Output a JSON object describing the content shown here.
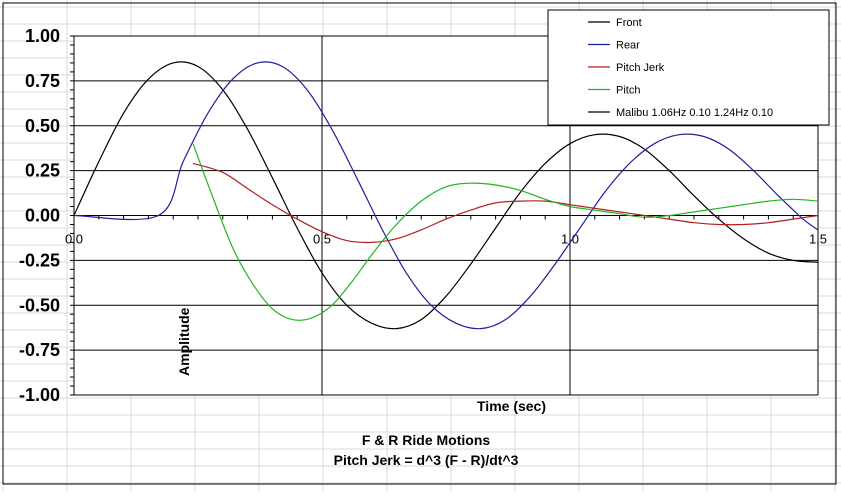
{
  "chart_data": {
    "type": "line",
    "title": "F & R Ride Motions",
    "subtitle": "Pitch Jerk = d^3 (F - R)/dt^3",
    "xlabel": "Time (sec)",
    "ylabel": "Amplitude",
    "xlim": [
      0,
      1.5
    ],
    "ylim": [
      -1.0,
      1.0
    ],
    "x_ticks": [
      {
        "value": 0.0,
        "label": "0.0"
      },
      {
        "value": 0.5,
        "label": "0.5"
      },
      {
        "value": 1.0,
        "label": "1.0"
      },
      {
        "value": 1.5,
        "label": "1.5"
      }
    ],
    "y_ticks": [
      {
        "value": 1.0,
        "label": "1.00"
      },
      {
        "value": 0.75,
        "label": "0.75"
      },
      {
        "value": 0.5,
        "label": "0.50"
      },
      {
        "value": 0.25,
        "label": "0.25"
      },
      {
        "value": 0.0,
        "label": "0.00"
      },
      {
        "value": -0.25,
        "label": "-0.25"
      },
      {
        "value": -0.5,
        "label": "-0.50"
      },
      {
        "value": -0.75,
        "label": "-0.75"
      },
      {
        "value": -1.0,
        "label": "-1.00"
      }
    ],
    "grid": "horizontal at y ticks, vertical at x ticks",
    "legend_position": "top-right",
    "series": [
      {
        "name": "Front",
        "color": "#000000",
        "x": [
          0.0,
          0.05,
          0.1,
          0.15,
          0.2,
          0.25,
          0.3,
          0.35,
          0.4,
          0.45,
          0.5,
          0.55,
          0.6,
          0.65,
          0.7,
          0.75,
          0.8,
          0.85,
          0.9,
          0.95,
          1.0,
          1.05,
          1.1,
          1.15,
          1.2,
          1.25,
          1.3,
          1.35,
          1.4,
          1.45,
          1.5
        ],
        "y": [
          0.0,
          0.3,
          0.57,
          0.76,
          0.85,
          0.83,
          0.7,
          0.48,
          0.21,
          -0.07,
          -0.32,
          -0.5,
          -0.6,
          -0.63,
          -0.58,
          -0.45,
          -0.27,
          -0.07,
          0.13,
          0.29,
          0.4,
          0.45,
          0.44,
          0.37,
          0.25,
          0.11,
          -0.02,
          -0.13,
          -0.21,
          -0.25,
          -0.26
        ]
      },
      {
        "name": "Rear",
        "color": "#1f1fa0",
        "x": [
          0.0,
          0.17,
          0.22,
          0.27,
          0.32,
          0.37,
          0.42,
          0.47,
          0.52,
          0.57,
          0.62,
          0.67,
          0.72,
          0.77,
          0.82,
          0.87,
          0.92,
          0.97,
          1.02,
          1.07,
          1.12,
          1.17,
          1.22,
          1.27,
          1.32,
          1.37,
          1.42,
          1.47,
          1.5
        ],
        "y": [
          0.0,
          0.0,
          0.3,
          0.57,
          0.76,
          0.85,
          0.83,
          0.7,
          0.48,
          0.21,
          -0.07,
          -0.32,
          -0.5,
          -0.6,
          -0.63,
          -0.58,
          -0.45,
          -0.27,
          -0.07,
          0.13,
          0.29,
          0.4,
          0.45,
          0.44,
          0.37,
          0.25,
          0.11,
          -0.02,
          -0.08
        ]
      },
      {
        "name": "Pitch Jerk",
        "color": "#b02020",
        "x": [
          0.24,
          0.3,
          0.35,
          0.4,
          0.45,
          0.5,
          0.55,
          0.6,
          0.65,
          0.7,
          0.75,
          0.8,
          0.85,
          0.9,
          0.95,
          1.0,
          1.05,
          1.1,
          1.15,
          1.2,
          1.25,
          1.3,
          1.35,
          1.4,
          1.45,
          1.5
        ],
        "y": [
          0.29,
          0.24,
          0.15,
          0.06,
          -0.02,
          -0.09,
          -0.14,
          -0.15,
          -0.13,
          -0.08,
          -0.02,
          0.03,
          0.07,
          0.08,
          0.08,
          0.06,
          0.04,
          0.02,
          0.0,
          -0.02,
          -0.04,
          -0.05,
          -0.05,
          -0.04,
          -0.02,
          0.0
        ]
      },
      {
        "name": "Pitch",
        "color": "#22b522",
        "x": [
          0.24,
          0.28,
          0.32,
          0.36,
          0.4,
          0.44,
          0.48,
          0.52,
          0.56,
          0.6,
          0.65,
          0.7,
          0.75,
          0.8,
          0.85,
          0.9,
          0.95,
          1.0,
          1.05,
          1.1,
          1.15,
          1.2,
          1.25,
          1.3,
          1.35,
          1.4,
          1.45,
          1.5
        ],
        "y": [
          0.4,
          0.1,
          -0.18,
          -0.38,
          -0.52,
          -0.58,
          -0.57,
          -0.5,
          -0.37,
          -0.22,
          -0.05,
          0.08,
          0.16,
          0.18,
          0.17,
          0.14,
          0.09,
          0.05,
          0.03,
          0.01,
          -0.01,
          0.0,
          0.02,
          0.04,
          0.06,
          0.08,
          0.09,
          0.08
        ]
      },
      {
        "name": "Malibu 1.06Hz 0.10  1.24Hz 0.10",
        "color": "#000000",
        "values_shown": false
      }
    ]
  }
}
